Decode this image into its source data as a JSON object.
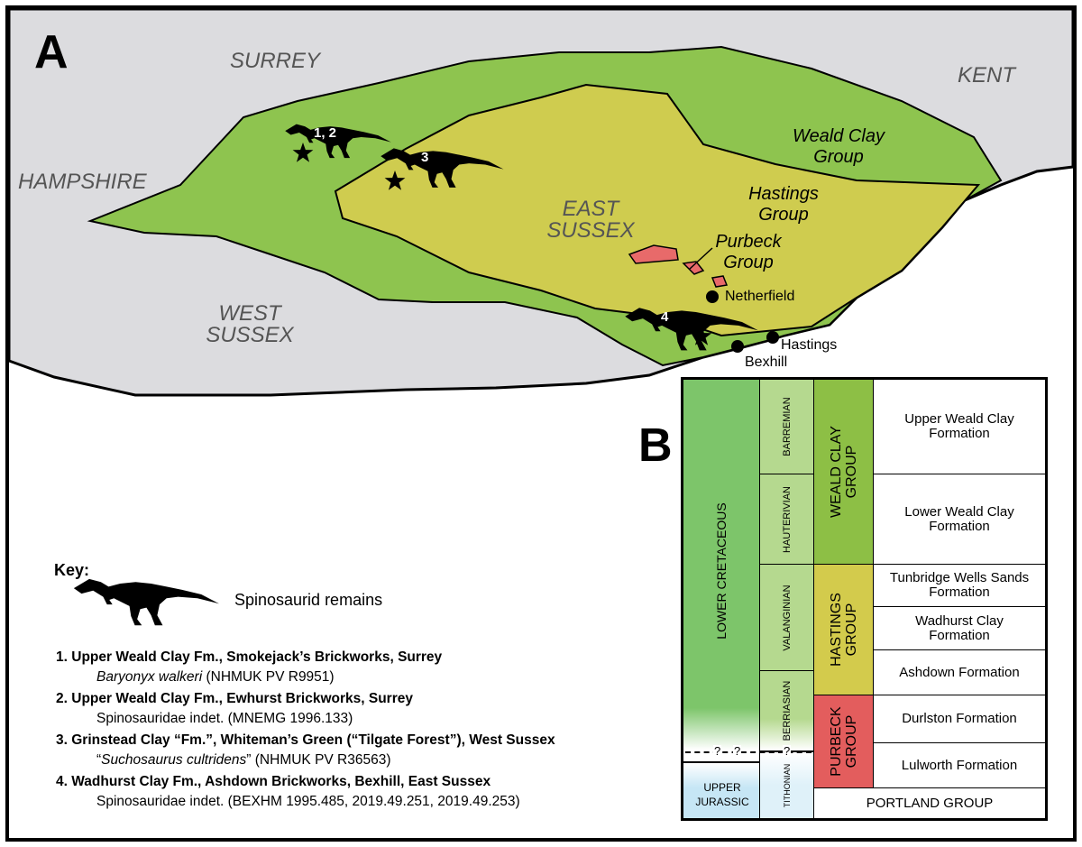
{
  "panel_a": {
    "label": "A",
    "counties": [
      "SURREY",
      "KENT",
      "HAMPSHIRE",
      "WEST SUSSEX",
      "EAST SUSSEX"
    ],
    "groups": [
      "Weald Clay Group",
      "Hastings Group",
      "Purbeck Group"
    ],
    "localities": [
      "1, 2",
      "3",
      "4"
    ],
    "towns": [
      "Netherfield",
      "Hastings",
      "Bexhill"
    ]
  },
  "key": {
    "title": "Key:",
    "symbol_label": "Spinosaurid remains",
    "entries": [
      {
        "number": "1.",
        "site": "Upper Weald Clay Fm., Smokejack’s Brickworks, Surrey",
        "specimen": [
          "Baryonyx walkeri",
          " (NHMUK PV R9951)"
        ]
      },
      {
        "number": "2.",
        "site": "Upper Weald Clay Fm., Ewhurst Brickworks, Surrey",
        "specimen": "Spinosauridae indet. (MNEMG 1996.133)"
      },
      {
        "number": "3.",
        "site": "Grinstead Clay “Fm.”, Whiteman’s Green (“Tilgate Forest”), West Sussex",
        "specimen": [
          "“",
          "Suchosaurus cultridens",
          "” (NHMUK PV R36563)"
        ]
      },
      {
        "number": "4.",
        "site": "Wadhurst Clay Fm., Ashdown Brickworks, Bexhill, East Sussex",
        "specimen": "Spinosauridae indet. (BEXHM 1995.485, 2019.49.251, 2019.49.253)"
      }
    ]
  },
  "panel_b": {
    "label": "B",
    "eras": [
      "LOWER CRETACEOUS",
      "UPPER JURASSIC"
    ],
    "boundary_marks": [
      "?",
      "?",
      "?"
    ],
    "stages": [
      "BARREMIAN",
      "HAUTERIVIAN",
      "VALANGINIAN",
      "BERRIASIAN",
      "TITHONIAN"
    ],
    "groups": [
      "WEALD CLAY GROUP",
      "HASTINGS GROUP",
      "PURBECK GROUP"
    ],
    "formations": [
      "Upper Weald Clay Formation",
      "Lower Weald Clay Formation",
      "Tunbridge Wells Sands Formation",
      "Wadhurst Clay Formation",
      "Ashdown Formation",
      "Durlston Formation",
      "Lulworth Formation",
      "PORTLAND GROUP"
    ]
  }
}
